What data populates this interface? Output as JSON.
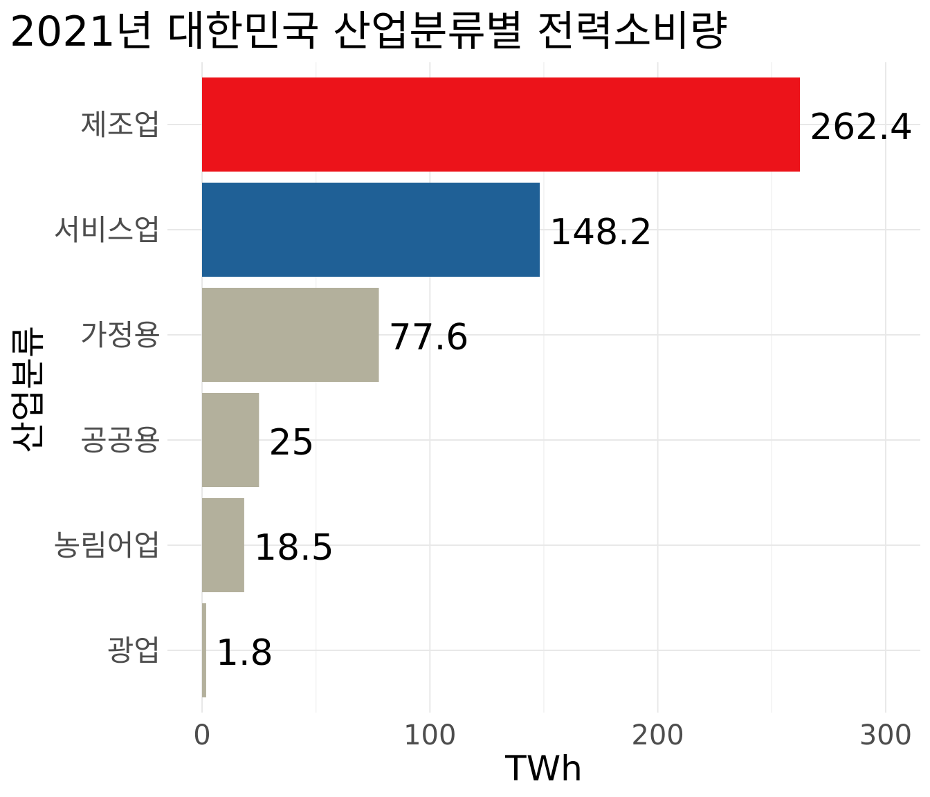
{
  "chart_data": {
    "type": "bar",
    "orientation": "horizontal",
    "title": "2021년 대한민국 산업분류별 전력소비량",
    "xlabel": "TWh",
    "ylabel": "산업분류",
    "categories": [
      "제조업",
      "서비스업",
      "가정용",
      "공공용",
      "농림어업",
      "광업"
    ],
    "values": [
      262.4,
      148.2,
      77.6,
      25,
      18.5,
      1.8
    ],
    "value_labels": [
      "262.4",
      "148.2",
      "77.6",
      "25",
      "18.5",
      "1.8"
    ],
    "colors": [
      "#EC131A",
      "#1F6096",
      "#B3B09C",
      "#B3B09C",
      "#B3B09C",
      "#B3B09C"
    ],
    "xlim": [
      0,
      315
    ],
    "x_ticks": [
      0,
      100,
      200,
      300
    ],
    "x_tick_labels": [
      "0",
      "100",
      "200",
      "300"
    ],
    "grid": true,
    "legend": false
  }
}
